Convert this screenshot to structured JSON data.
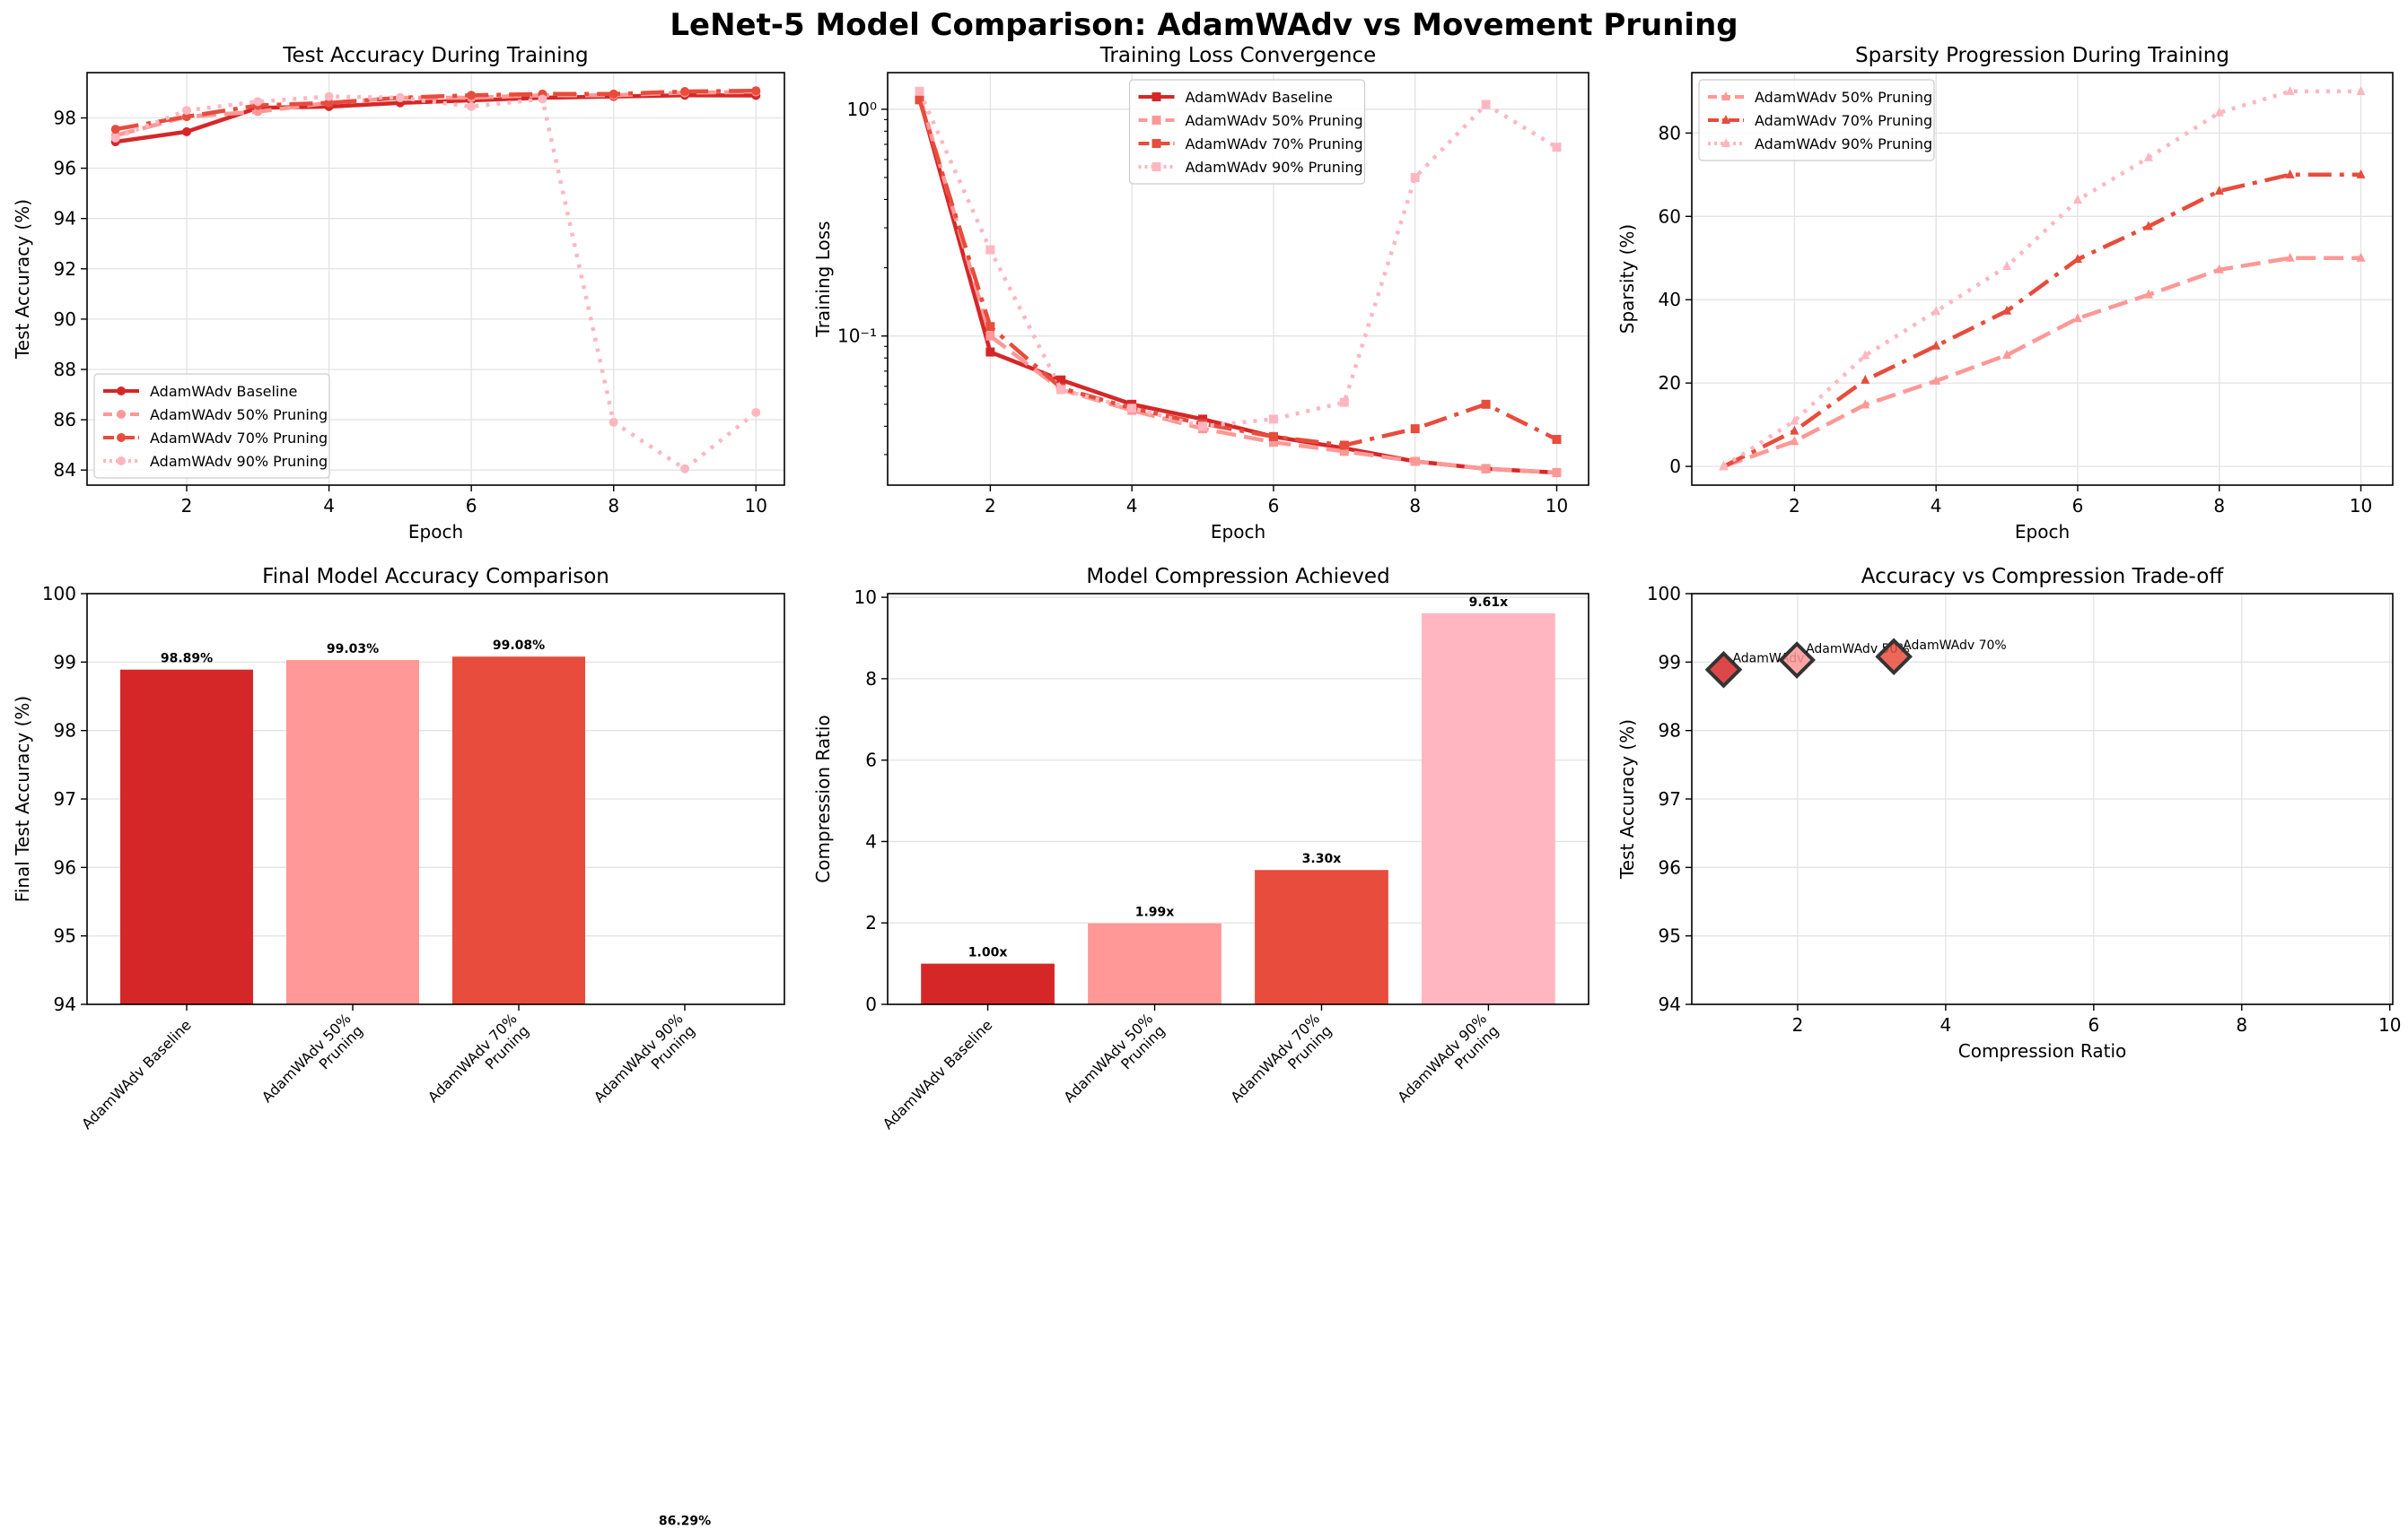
{
  "figure_title": "LeNet-5 Model Comparison: AdamWAdv vs Movement Pruning",
  "colors": {
    "baseline": "#d62728",
    "p50": "#ff9896",
    "p70": "#e74c3c",
    "p90": "#ffb6c1"
  },
  "chart_data": [
    {
      "id": "acc",
      "type": "line",
      "title": "Test Accuracy During Training",
      "xlabel": "Epoch",
      "ylabel": "Test Accuracy (%)",
      "xlim": [
        0.6,
        10.4
      ],
      "ylim": [
        83.4,
        99.8
      ],
      "xticks": [
        2,
        4,
        6,
        8,
        10
      ],
      "yticks": [
        84,
        86,
        88,
        90,
        92,
        94,
        96,
        98
      ],
      "grid": true,
      "legend_position": "lower-left",
      "x": [
        1,
        2,
        3,
        4,
        5,
        6,
        7,
        8,
        9,
        10
      ],
      "series": [
        {
          "name": "AdamWAdv Baseline",
          "color_key": "baseline",
          "marker": "circle",
          "dash": "solid",
          "values": [
            97.05,
            97.45,
            98.4,
            98.45,
            98.6,
            98.7,
            98.8,
            98.85,
            98.9,
            98.89
          ]
        },
        {
          "name": "AdamWAdv 50% Pruning",
          "color_key": "p50",
          "marker": "circle",
          "dash": "dashed",
          "values": [
            97.3,
            98.05,
            98.25,
            98.6,
            98.8,
            98.8,
            98.9,
            98.9,
            99.0,
            99.03
          ]
        },
        {
          "name": "AdamWAdv 70% Pruning",
          "color_key": "p70",
          "marker": "circle",
          "dash": "dashdot",
          "values": [
            97.55,
            98.05,
            98.5,
            98.6,
            98.8,
            98.9,
            98.95,
            98.95,
            99.05,
            99.08
          ]
        },
        {
          "name": "AdamWAdv 90% Pruning",
          "color_key": "p90",
          "marker": "circle",
          "dash": "dotted",
          "values": [
            97.2,
            98.3,
            98.65,
            98.85,
            98.8,
            98.45,
            98.75,
            85.9,
            84.05,
            86.29
          ]
        }
      ]
    },
    {
      "id": "loss",
      "type": "line",
      "title": "Training Loss Convergence",
      "xlabel": "Epoch",
      "ylabel": "Training Loss",
      "yscale": "log",
      "xlim": [
        0.55,
        10.45
      ],
      "ylim": [
        0.022,
        1.45
      ],
      "xticks": [
        2,
        4,
        6,
        8,
        10
      ],
      "yticks": [
        0.1,
        1
      ],
      "ytick_labels": [
        "10⁻¹",
        "10⁰"
      ],
      "grid": true,
      "legend_position": "top-center",
      "x": [
        1,
        2,
        3,
        4,
        5,
        6,
        7,
        8,
        9,
        10
      ],
      "series": [
        {
          "name": "AdamWAdv Baseline",
          "color_key": "baseline",
          "marker": "square",
          "dash": "solid",
          "values": [
            1.12,
            0.085,
            0.064,
            0.05,
            0.043,
            0.036,
            0.032,
            0.028,
            0.026,
            0.025
          ]
        },
        {
          "name": "AdamWAdv 50% Pruning",
          "color_key": "p50",
          "marker": "square",
          "dash": "dashed",
          "values": [
            1.15,
            0.1,
            0.058,
            0.047,
            0.039,
            0.034,
            0.031,
            0.028,
            0.026,
            0.025
          ]
        },
        {
          "name": "AdamWAdv 70% Pruning",
          "color_key": "p70",
          "marker": "square",
          "dash": "dashdot",
          "values": [
            1.1,
            0.11,
            0.059,
            0.048,
            0.041,
            0.036,
            0.033,
            0.039,
            0.05,
            0.035
          ]
        },
        {
          "name": "AdamWAdv 90% Pruning",
          "color_key": "p90",
          "marker": "square",
          "dash": "dotted",
          "values": [
            1.2,
            0.24,
            0.058,
            0.048,
            0.04,
            0.043,
            0.051,
            0.5,
            1.05,
            0.68
          ]
        }
      ]
    },
    {
      "id": "sparsity",
      "type": "line",
      "title": "Sparsity Progression During Training",
      "xlabel": "Epoch",
      "ylabel": "Sparsity (%)",
      "xlim": [
        0.55,
        10.45
      ],
      "ylim": [
        -4.5,
        94.5
      ],
      "xticks": [
        2,
        4,
        6,
        8,
        10
      ],
      "yticks": [
        0,
        20,
        40,
        60,
        80
      ],
      "grid": true,
      "legend_position": "top-left",
      "x": [
        1,
        2,
        3,
        4,
        5,
        6,
        7,
        8,
        9,
        10
      ],
      "series": [
        {
          "name": "AdamWAdv 50% Pruning",
          "color_key": "p50",
          "marker": "triangle",
          "dash": "dashed",
          "values": [
            0,
            6,
            14.8,
            20.5,
            26.7,
            35.5,
            41.2,
            47.2,
            50,
            50
          ]
        },
        {
          "name": "AdamWAdv 70% Pruning",
          "color_key": "p70",
          "marker": "triangle",
          "dash": "dashdot",
          "values": [
            0,
            8.5,
            20.7,
            28.9,
            37.3,
            49.7,
            57.6,
            66.1,
            70,
            70
          ]
        },
        {
          "name": "AdamWAdv 90% Pruning",
          "color_key": "p90",
          "marker": "triangle",
          "dash": "dotted",
          "values": [
            0,
            10.9,
            26.6,
            37.2,
            48,
            63.9,
            74.1,
            84.9,
            90,
            90
          ]
        }
      ]
    },
    {
      "id": "finalacc",
      "type": "bar",
      "title": "Final Model Accuracy Comparison",
      "xlabel": "",
      "ylabel": "Final Test Accuracy (%)",
      "ylim": [
        94,
        100
      ],
      "yticks": [
        94,
        95,
        96,
        97,
        98,
        99,
        100
      ],
      "grid": true,
      "categories": [
        "AdamWAdv Baseline",
        "AdamWAdv 50%\nPruning",
        "AdamWAdv 70%\nPruning",
        "AdamWAdv 90%\nPruning"
      ],
      "color_keys": [
        "baseline",
        "p50",
        "p70",
        "p90"
      ],
      "values": [
        98.89,
        99.03,
        99.08,
        86.29
      ],
      "data_labels": [
        "98.89%",
        "99.03%",
        "99.08%",
        "86.29%"
      ]
    },
    {
      "id": "compression",
      "type": "bar",
      "title": "Model Compression Achieved",
      "xlabel": "",
      "ylabel": "Compression Ratio",
      "ylim": [
        0,
        10.09
      ],
      "yticks": [
        0,
        2,
        4,
        6,
        8,
        10
      ],
      "grid": true,
      "categories": [
        "AdamWAdv Baseline",
        "AdamWAdv 50%\nPruning",
        "AdamWAdv 70%\nPruning",
        "AdamWAdv 90%\nPruning"
      ],
      "color_keys": [
        "baseline",
        "p50",
        "p70",
        "p90"
      ],
      "values": [
        1.0,
        1.99,
        3.3,
        9.61
      ],
      "data_labels": [
        "1.00x",
        "1.99x",
        "3.30x",
        "9.61x"
      ]
    },
    {
      "id": "tradeoff",
      "type": "scatter",
      "title": "Accuracy vs Compression Trade-off",
      "xlabel": "Compression Ratio",
      "ylabel": "Test Accuracy (%)",
      "xlim": [
        0.57,
        10.04
      ],
      "ylim": [
        94,
        100
      ],
      "xticks": [
        2,
        4,
        6,
        8,
        10
      ],
      "yticks": [
        94,
        95,
        96,
        97,
        98,
        99,
        100
      ],
      "grid": true,
      "points": [
        {
          "x": 1.0,
          "y": 98.89,
          "color_key": "baseline",
          "label": "AdamWAdv"
        },
        {
          "x": 1.99,
          "y": 99.03,
          "color_key": "p50",
          "label": "AdamWAdv 50%"
        },
        {
          "x": 3.3,
          "y": 99.08,
          "color_key": "p70",
          "label": "AdamWAdv 70%"
        }
      ]
    }
  ]
}
